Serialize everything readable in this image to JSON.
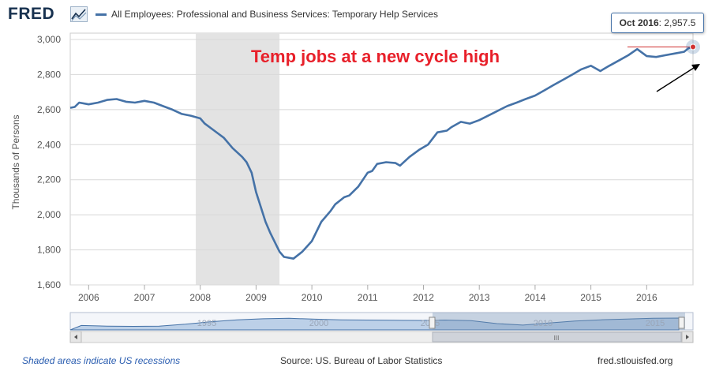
{
  "header": {
    "logo_text": "FRED",
    "series_title": "All Employees: Professional and Business Services: Temporary Help Services"
  },
  "tooltip": {
    "date": "Oct 2016",
    "value": "2,957.5"
  },
  "annotation": {
    "text": "Temp jobs at a new cycle high",
    "color": "#e8202a"
  },
  "footer": {
    "recession_note": "Shaded areas indicate US recessions",
    "source": "Source: US. Bureau of Labor Statistics",
    "site": "fred.stlouisfed.org"
  },
  "colors": {
    "line": "#4572a7",
    "recession": "#e3e3e3",
    "arrow": "#000000",
    "tooltip_border": "#4572a7"
  },
  "chart_data": {
    "type": "line",
    "title": "All Employees: Professional and Business Services: Temporary Help Services",
    "xlabel": "",
    "ylabel": "Thousands of Persons",
    "xlim": [
      2005.67,
      2016.83
    ],
    "ylim": [
      1600,
      3000
    ],
    "yticks": [
      1600,
      1800,
      2000,
      2200,
      2400,
      2600,
      2800,
      3000
    ],
    "ytick_labels": [
      "1,600",
      "1,800",
      "2,000",
      "2,200",
      "2,400",
      "2,600",
      "2,800",
      "3,000"
    ],
    "xticks": [
      2006,
      2007,
      2008,
      2009,
      2010,
      2011,
      2012,
      2013,
      2014,
      2015,
      2016
    ],
    "xtick_labels": [
      "2006",
      "2007",
      "2008",
      "2009",
      "2010",
      "2011",
      "2012",
      "2013",
      "2014",
      "2015",
      "2016"
    ],
    "recessions": [
      [
        2007.92,
        2009.42
      ]
    ],
    "grid": true,
    "series": [
      {
        "name": "All Employees: Professional and Business Services: Temporary Help Services",
        "x": [
          2005.67,
          2005.75,
          2005.83,
          2006.0,
          2006.17,
          2006.33,
          2006.5,
          2006.67,
          2006.83,
          2007.0,
          2007.17,
          2007.33,
          2007.5,
          2007.67,
          2007.83,
          2008.0,
          2008.08,
          2008.25,
          2008.42,
          2008.58,
          2008.75,
          2008.83,
          2008.92,
          2009.0,
          2009.17,
          2009.25,
          2009.42,
          2009.5,
          2009.67,
          2009.83,
          2010.0,
          2010.17,
          2010.33,
          2010.42,
          2010.58,
          2010.67,
          2010.83,
          2011.0,
          2011.08,
          2011.17,
          2011.33,
          2011.5,
          2011.58,
          2011.75,
          2011.92,
          2012.08,
          2012.25,
          2012.42,
          2012.5,
          2012.67,
          2012.83,
          2013.0,
          2013.25,
          2013.5,
          2013.67,
          2013.83,
          2014.0,
          2014.17,
          2014.33,
          2014.5,
          2014.67,
          2014.83,
          2015.0,
          2015.17,
          2015.33,
          2015.5,
          2015.67,
          2015.83,
          2016.0,
          2016.17,
          2016.33,
          2016.5,
          2016.67,
          2016.75,
          2016.83
        ],
        "values": [
          2610,
          2615,
          2640,
          2630,
          2640,
          2655,
          2660,
          2645,
          2640,
          2650,
          2640,
          2620,
          2600,
          2575,
          2565,
          2550,
          2520,
          2480,
          2440,
          2380,
          2330,
          2300,
          2240,
          2130,
          1960,
          1900,
          1790,
          1760,
          1750,
          1790,
          1850,
          1960,
          2020,
          2060,
          2100,
          2110,
          2160,
          2240,
          2250,
          2290,
          2300,
          2295,
          2280,
          2330,
          2370,
          2400,
          2470,
          2480,
          2500,
          2530,
          2520,
          2540,
          2580,
          2620,
          2640,
          2660,
          2680,
          2710,
          2740,
          2770,
          2800,
          2830,
          2850,
          2820,
          2850,
          2880,
          2910,
          2945,
          2905,
          2900,
          2910,
          2920,
          2930,
          2950,
          2957.5
        ]
      }
    ],
    "navigator": {
      "tick_labels": [
        "1995",
        "2000",
        "2005",
        "2010",
        "2015"
      ],
      "scroll_label": "III"
    }
  }
}
